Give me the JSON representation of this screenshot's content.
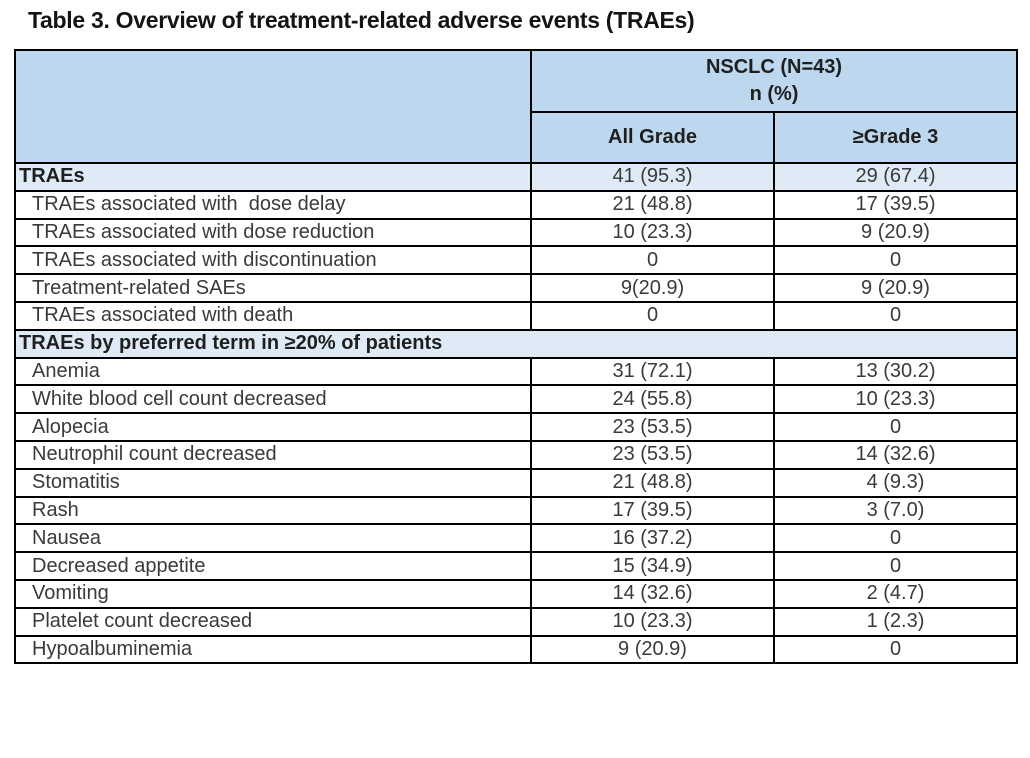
{
  "page": {
    "title": "Table 3. Overview of treatment-related adverse events (TRAEs)"
  },
  "table": {
    "group_header_line1": "NSCLC (N=43)",
    "group_header_line2": "n (%)",
    "columns": [
      "All Grade",
      "≥Grade 3"
    ],
    "colors": {
      "header_bg": "#BDD7EE",
      "section_bg": "#DEEAF6",
      "border": "#000000",
      "body_text": "#3a3a3a"
    },
    "rows": [
      {
        "type": "section",
        "label": "TRAEs",
        "all_grade": "41 (95.3)",
        "grade3": "29 (67.4)"
      },
      {
        "type": "item",
        "label": "TRAEs associated with  dose delay",
        "all_grade": "21 (48.8)",
        "grade3": "17 (39.5)"
      },
      {
        "type": "item",
        "label": "TRAEs associated with dose reduction",
        "all_grade": "10 (23.3)",
        "grade3": "9 (20.9)"
      },
      {
        "type": "item",
        "label": "TRAEs associated with discontinuation",
        "all_grade": "0",
        "grade3": "0"
      },
      {
        "type": "item",
        "label": "Treatment-related SAEs",
        "all_grade": "9(20.9)",
        "grade3": "9 (20.9)"
      },
      {
        "type": "item",
        "label": "TRAEs associated with death",
        "all_grade": "0",
        "grade3": "0"
      },
      {
        "type": "section-span",
        "label": "TRAEs by preferred term in ≥20% of patients"
      },
      {
        "type": "item",
        "label": "Anemia",
        "all_grade": "31 (72.1)",
        "grade3": "13 (30.2)"
      },
      {
        "type": "item",
        "label": "White blood cell count decreased",
        "all_grade": "24 (55.8)",
        "grade3": "10 (23.3)"
      },
      {
        "type": "item",
        "label": "Alopecia",
        "all_grade": "23 (53.5)",
        "grade3": "0"
      },
      {
        "type": "item",
        "label": "Neutrophil count decreased",
        "all_grade": "23 (53.5)",
        "grade3": "14 (32.6)"
      },
      {
        "type": "item",
        "label": "Stomatitis",
        "all_grade": "21 (48.8)",
        "grade3": "4 (9.3)"
      },
      {
        "type": "item",
        "label": "Rash",
        "all_grade": "17 (39.5)",
        "grade3": "3 (7.0)"
      },
      {
        "type": "item",
        "label": "Nausea",
        "all_grade": "16 (37.2)",
        "grade3": "0"
      },
      {
        "type": "item",
        "label": "Decreased appetite",
        "all_grade": "15 (34.9)",
        "grade3": "0"
      },
      {
        "type": "item",
        "label": "Vomiting",
        "all_grade": "14 (32.6)",
        "grade3": "2 (4.7)"
      },
      {
        "type": "item",
        "label": "Platelet count decreased",
        "all_grade": "10 (23.3)",
        "grade3": "1 (2.3)"
      },
      {
        "type": "item",
        "label": "Hypoalbuminemia",
        "all_grade": "9 (20.9)",
        "grade3": "0"
      }
    ]
  }
}
